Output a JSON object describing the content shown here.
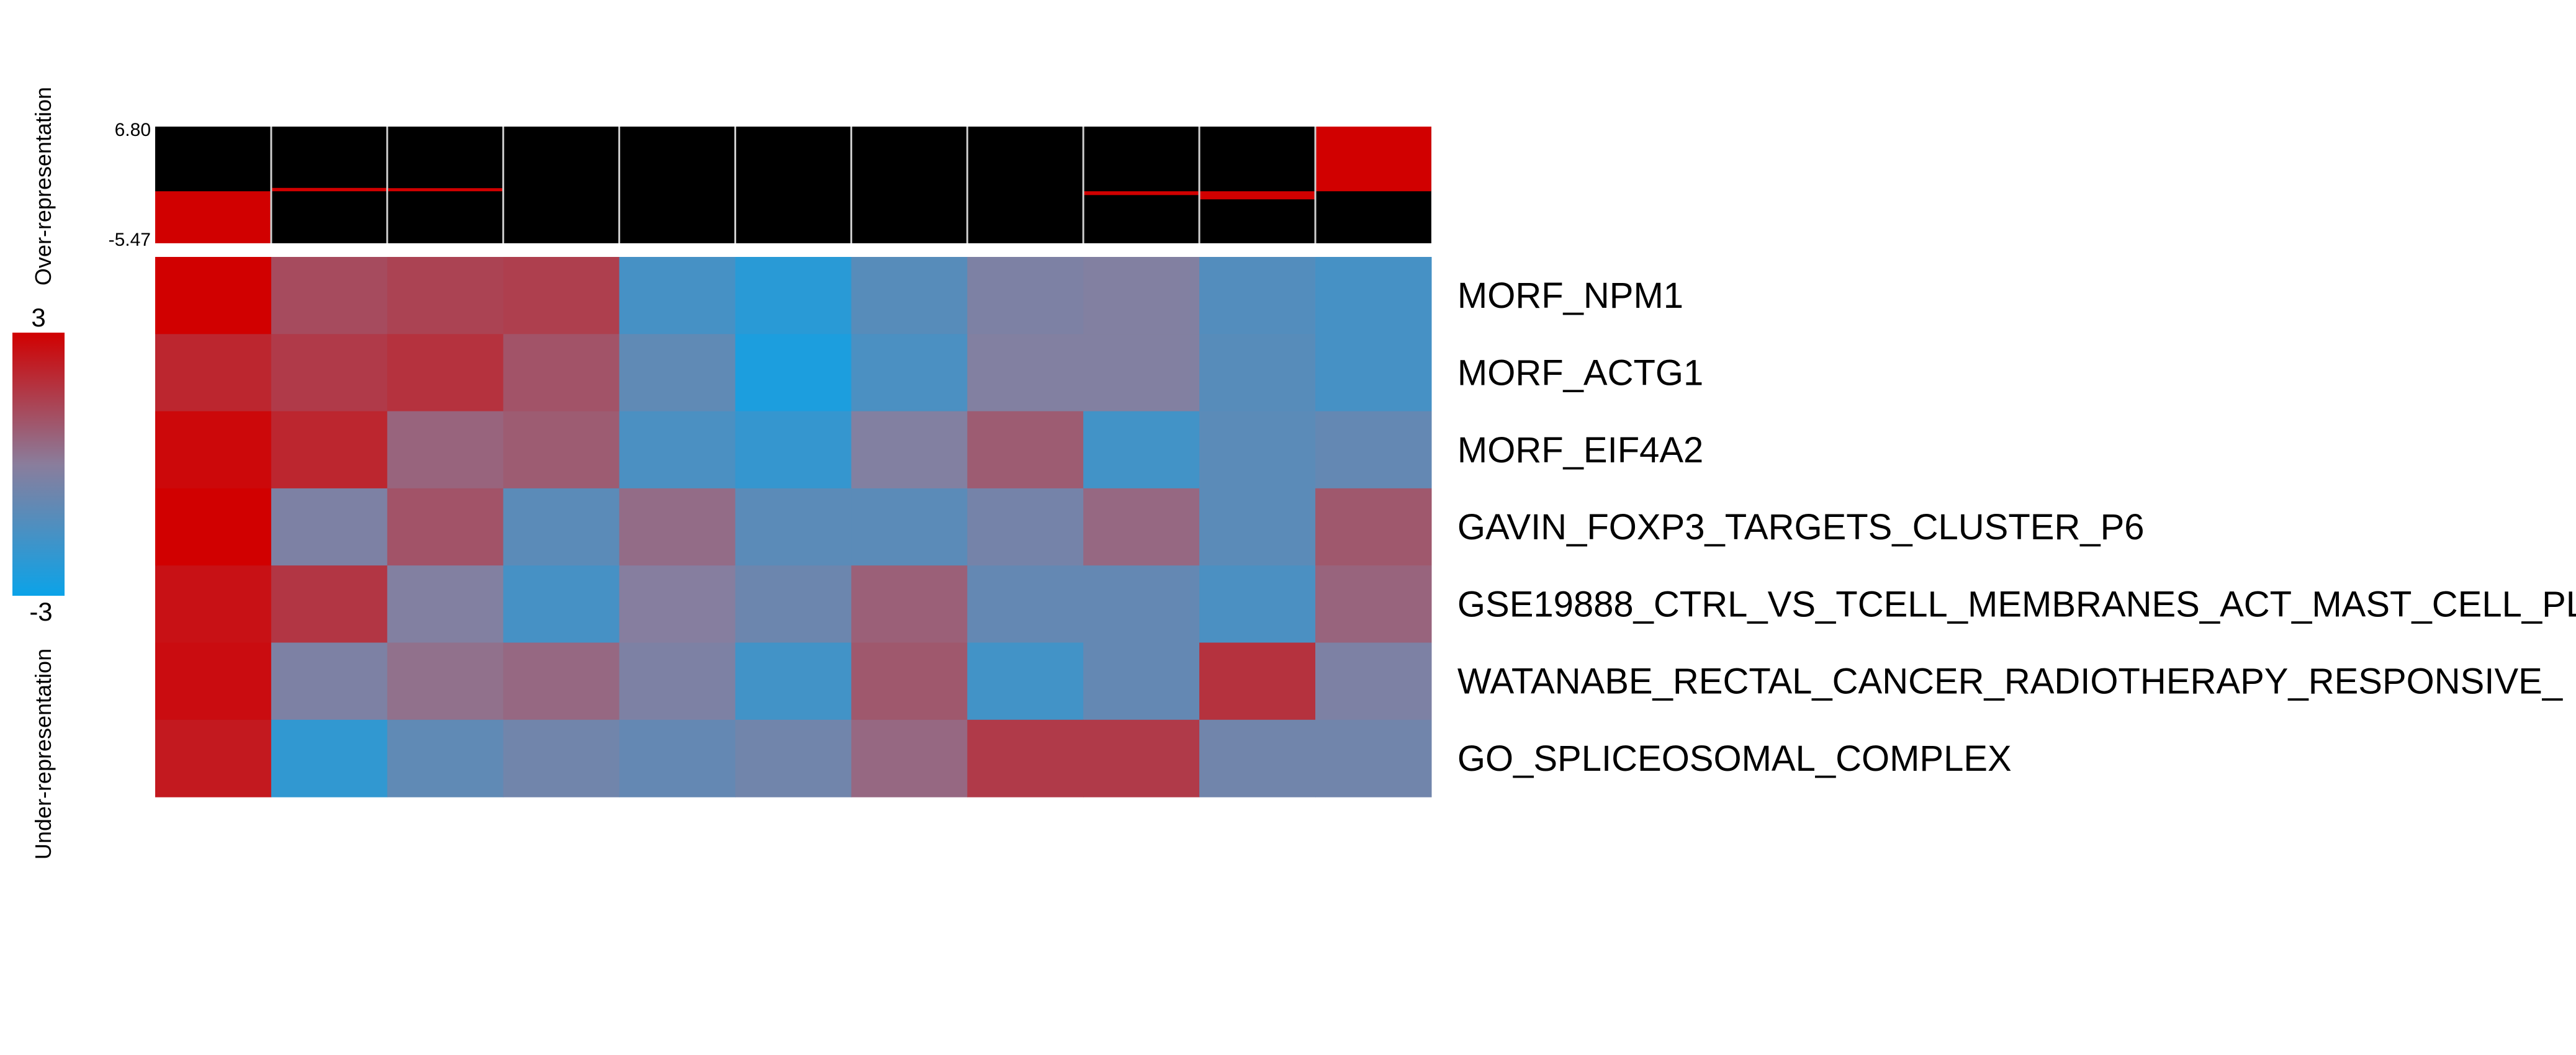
{
  "chart_data": {
    "type": "heatmap",
    "rows": [
      "MORF_NPM1",
      "MORF_ACTG1",
      "MORF_EIF4A2",
      "GAVIN_FOXP3_TARGETS_CLUSTER_P6",
      "GSE19888_CTRL_VS_TCELL_MEMBRANES_ACT_MAST_CELL_PL",
      "WATANABE_RECTAL_CANCER_RADIOTHERAPY_RESPONSIVE_",
      "GO_SPLICEOSOMAL_COMPLEX"
    ],
    "values": [
      [
        3.0,
        1.2,
        1.4,
        1.5,
        -1.6,
        -2.3,
        -1.2,
        -0.3,
        -0.2,
        -1.3,
        -1.6
      ],
      [
        2.1,
        1.6,
        1.8,
        1.0,
        -1.0,
        -2.6,
        -1.5,
        -0.2,
        -0.2,
        -1.2,
        -1.6
      ],
      [
        2.8,
        2.1,
        0.6,
        0.8,
        -1.5,
        -2.0,
        -0.2,
        0.8,
        -1.7,
        -1.1,
        -0.9
      ],
      [
        3.0,
        -0.3,
        1.0,
        -1.1,
        0.4,
        -1.1,
        -1.1,
        -0.5,
        0.5,
        -1.1,
        0.9
      ],
      [
        2.6,
        1.7,
        -0.2,
        -1.6,
        -0.1,
        -0.7,
        0.7,
        -0.9,
        -0.9,
        -1.5,
        0.6
      ],
      [
        2.7,
        -0.3,
        0.3,
        0.5,
        -0.3,
        -1.7,
        0.9,
        -1.7,
        -0.9,
        1.8,
        -0.3
      ],
      [
        2.4,
        -2.1,
        -1.0,
        -0.6,
        -0.9,
        -0.6,
        0.5,
        1.6,
        1.6,
        -0.6,
        -0.6
      ]
    ],
    "color_scale": {
      "min": -3,
      "max": 3,
      "low": "#0ba3e8",
      "mid": "#8a7d9c",
      "high": "#d10000"
    },
    "colorbar_labels": {
      "top": "3",
      "bottom": "-3"
    },
    "side_labels": {
      "top": "Over-representation",
      "bottom": "Under-representation"
    },
    "bar_panel": {
      "ymax_label": "6.80",
      "ymin_label": "-5.47",
      "ymax": 6.8,
      "ymin": -5.47,
      "values": [
        -5.47,
        0.35,
        0.25,
        0.0,
        0.0,
        0.0,
        0.0,
        0.0,
        -0.4,
        -0.85,
        6.8
      ]
    }
  }
}
